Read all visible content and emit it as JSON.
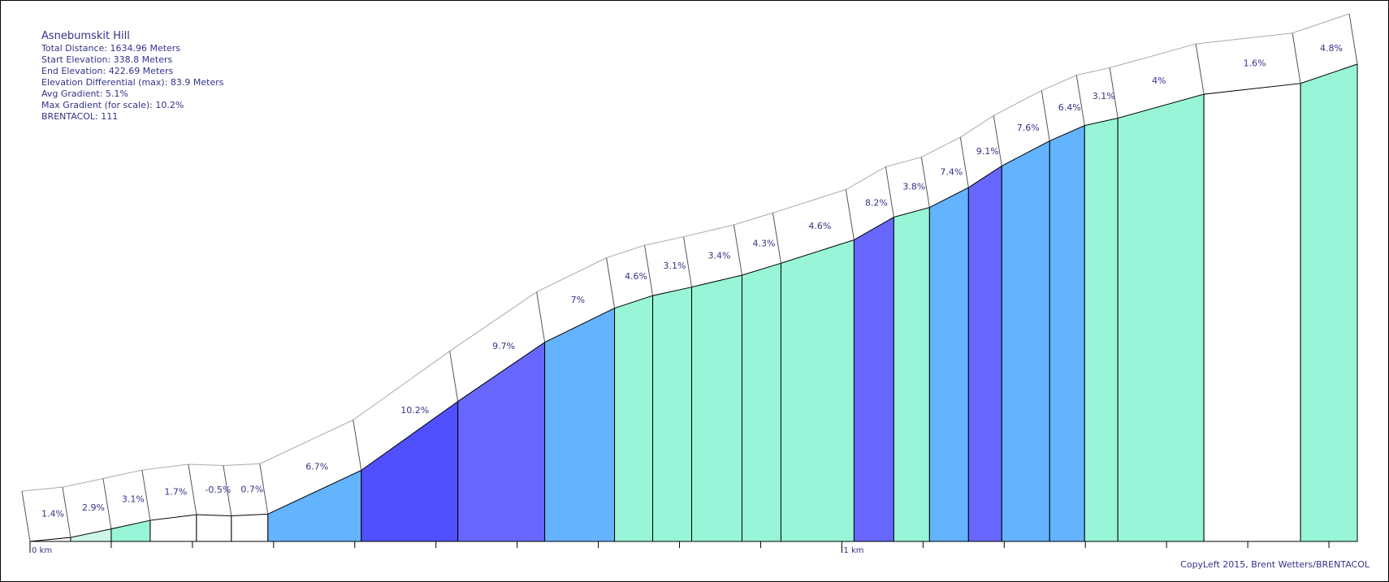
{
  "info": {
    "title": "Asnebumskit Hill",
    "total_distance": "Total Distance: 1634.96 Meters",
    "start_elevation": "Start Elevation: 338.8 Meters",
    "end_elevation": "End Elevation: 422.69 Meters",
    "elevation_differential": "Elevation Differential (max): 83.9 Meters",
    "avg_gradient": "Avg Gradient: 5.1%",
    "max_gradient": "Max Gradient (for scale): 10.2%",
    "brentacol": "BRENTACOL: 111"
  },
  "copyleft": "CopyLeft 2015, Brent Wetters/BRENTACOL",
  "chart_data": {
    "type": "area",
    "title": "Asnebumskit Hill",
    "x_unit": "km",
    "y_unit": "m",
    "xlim": [
      0,
      1.63496
    ],
    "ylim": [
      338.8,
      422.69
    ],
    "x_tick_labels": [
      {
        "x": 0,
        "label": "0 km"
      },
      {
        "x": 1,
        "label": "1 km"
      }
    ],
    "x_minor_ticks": [
      0.1,
      0.2,
      0.3,
      0.4,
      0.5,
      0.6,
      0.7,
      0.8,
      0.9,
      1.1,
      1.2,
      1.3,
      1.4,
      1.5,
      1.6
    ],
    "color_legend": {
      "white": "#ffffff",
      "mint": "#98f5d7",
      "light_blue": "#63b3fe",
      "periwinkle": "#6767ff",
      "blue": "#5050ff",
      "pale": "#ccf7e9"
    },
    "segments": [
      {
        "x_start": 0.0,
        "x_end": 0.05,
        "elev_start": 338.8,
        "elev_end": 339.5,
        "grade": "1.4%",
        "color": "#ffffff"
      },
      {
        "x_start": 0.05,
        "x_end": 0.1,
        "elev_start": 339.5,
        "elev_end": 341.0,
        "grade": "2.9%",
        "color": "#ccf7e9"
      },
      {
        "x_start": 0.1,
        "x_end": 0.148,
        "elev_start": 341.0,
        "elev_end": 342.5,
        "grade": "3.1%",
        "color": "#98f5d7"
      },
      {
        "x_start": 0.148,
        "x_end": 0.205,
        "elev_start": 342.5,
        "elev_end": 343.5,
        "grade": "1.7%",
        "color": "#ffffff"
      },
      {
        "x_start": 0.205,
        "x_end": 0.248,
        "elev_start": 343.5,
        "elev_end": 343.3,
        "grade": "-0.5%",
        "color": "#ffffff"
      },
      {
        "x_start": 0.248,
        "x_end": 0.293,
        "elev_start": 343.3,
        "elev_end": 343.6,
        "grade": "0.7%",
        "color": "#ffffff"
      },
      {
        "x_start": 0.293,
        "x_end": 0.408,
        "elev_start": 343.6,
        "elev_end": 351.3,
        "grade": "6.7%",
        "color": "#63b3fe"
      },
      {
        "x_start": 0.408,
        "x_end": 0.527,
        "elev_start": 351.3,
        "elev_end": 363.4,
        "grade": "10.2%",
        "color": "#5050ff"
      },
      {
        "x_start": 0.527,
        "x_end": 0.634,
        "elev_start": 363.4,
        "elev_end": 373.8,
        "grade": "9.7%",
        "color": "#6767ff"
      },
      {
        "x_start": 0.634,
        "x_end": 0.72,
        "elev_start": 373.8,
        "elev_end": 379.8,
        "grade": "7%",
        "color": "#63b3fe"
      },
      {
        "x_start": 0.72,
        "x_end": 0.767,
        "elev_start": 379.8,
        "elev_end": 382.0,
        "grade": "4.6%",
        "color": "#98f5d7"
      },
      {
        "x_start": 0.767,
        "x_end": 0.815,
        "elev_start": 382.0,
        "elev_end": 383.5,
        "grade": "3.1%",
        "color": "#98f5d7"
      },
      {
        "x_start": 0.815,
        "x_end": 0.877,
        "elev_start": 383.5,
        "elev_end": 385.6,
        "grade": "3.4%",
        "color": "#98f5d7"
      },
      {
        "x_start": 0.877,
        "x_end": 0.925,
        "elev_start": 385.6,
        "elev_end": 387.7,
        "grade": "4.3%",
        "color": "#98f5d7"
      },
      {
        "x_start": 0.925,
        "x_end": 1.015,
        "elev_start": 387.7,
        "elev_end": 391.8,
        "grade": "4.6%",
        "color": "#98f5d7"
      },
      {
        "x_start": 1.015,
        "x_end": 1.064,
        "elev_start": 391.8,
        "elev_end": 395.8,
        "grade": "8.2%",
        "color": "#6767ff"
      },
      {
        "x_start": 1.064,
        "x_end": 1.108,
        "elev_start": 395.8,
        "elev_end": 397.5,
        "grade": "3.8%",
        "color": "#98f5d7"
      },
      {
        "x_start": 1.108,
        "x_end": 1.156,
        "elev_start": 397.5,
        "elev_end": 401.0,
        "grade": "7.4%",
        "color": "#63b3fe"
      },
      {
        "x_start": 1.156,
        "x_end": 1.197,
        "elev_start": 401.0,
        "elev_end": 404.8,
        "grade": "9.1%",
        "color": "#6767ff"
      },
      {
        "x_start": 1.197,
        "x_end": 1.256,
        "elev_start": 404.8,
        "elev_end": 409.2,
        "grade": "7.6%",
        "color": "#63b3fe"
      },
      {
        "x_start": 1.256,
        "x_end": 1.299,
        "elev_start": 409.2,
        "elev_end": 411.9,
        "grade": "6.4%",
        "color": "#63b3fe"
      },
      {
        "x_start": 1.299,
        "x_end": 1.34,
        "elev_start": 411.9,
        "elev_end": 413.2,
        "grade": "3.1%",
        "color": "#98f5d7"
      },
      {
        "x_start": 1.34,
        "x_end": 1.446,
        "elev_start": 413.2,
        "elev_end": 417.4,
        "grade": "4%",
        "color": "#98f5d7"
      },
      {
        "x_start": 1.446,
        "x_end": 1.565,
        "elev_start": 417.4,
        "elev_end": 419.3,
        "grade": "1.6%",
        "color": "#ffffff"
      },
      {
        "x_start": 1.565,
        "x_end": 1.635,
        "elev_start": 419.3,
        "elev_end": 422.69,
        "grade": "4.8%",
        "color": "#98f5d7"
      }
    ]
  }
}
